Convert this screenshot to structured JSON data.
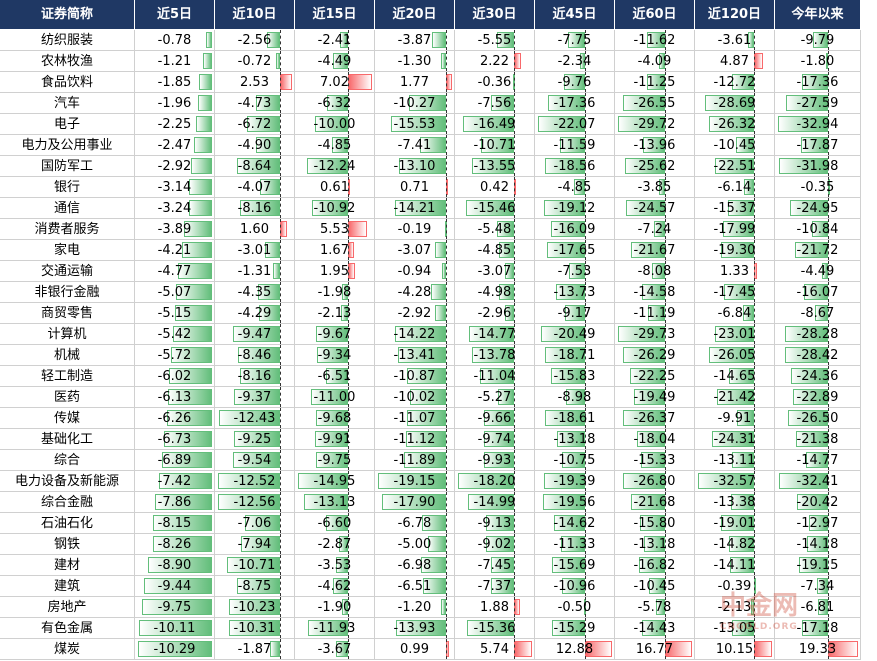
{
  "table": {
    "columns": [
      "证券简称",
      "近5日",
      "近10日",
      "近15日",
      "近20日",
      "近30日",
      "近45日",
      "近60日",
      "近120日",
      "今年以来"
    ],
    "rows": [
      {
        "name": "纺织服装",
        "values": [
          "-0.78",
          "-2.56",
          "-2.41",
          "-3.87",
          "-5.55",
          "-7.75",
          "-11.62",
          "-3.61",
          "-9.79"
        ]
      },
      {
        "name": "农林牧渔",
        "values": [
          "-1.21",
          "-0.72",
          "-4.49",
          "-1.30",
          "2.22",
          "-2.34",
          "-4.09",
          "4.87",
          "-1.80"
        ]
      },
      {
        "name": "食品饮料",
        "values": [
          "-1.85",
          "2.53",
          "7.02",
          "1.77",
          "-0.36",
          "-9.76",
          "-11.25",
          "-12.72",
          "-17.36"
        ]
      },
      {
        "name": "汽车",
        "values": [
          "-1.96",
          "-4.73",
          "-6.32",
          "-10.27",
          "-7.56",
          "-17.36",
          "-26.55",
          "-28.69",
          "-27.59"
        ]
      },
      {
        "name": "电子",
        "values": [
          "-2.25",
          "-6.72",
          "-10.00",
          "-15.53",
          "-16.49",
          "-22.07",
          "-29.72",
          "-26.32",
          "-32.94"
        ]
      },
      {
        "name": "电力及公用事业",
        "values": [
          "-2.47",
          "-4.90",
          "-4.85",
          "-7.41",
          "-10.71",
          "-11.59",
          "-13.96",
          "-10.45",
          "-17.87"
        ]
      },
      {
        "name": "国防军工",
        "values": [
          "-2.92",
          "-8.64",
          "-12.24",
          "-13.10",
          "-13.55",
          "-18.56",
          "-25.62",
          "-22.51",
          "-31.98"
        ]
      },
      {
        "name": "银行",
        "values": [
          "-3.14",
          "-4.07",
          "0.61",
          "0.71",
          "0.42",
          "-4.85",
          "-3.85",
          "-6.14",
          "-0.35"
        ]
      },
      {
        "name": "通信",
        "values": [
          "-3.24",
          "-8.16",
          "-10.92",
          "-14.21",
          "-15.46",
          "-19.12",
          "-24.57",
          "-15.37",
          "-24.95"
        ]
      },
      {
        "name": "消费者服务",
        "values": [
          "-3.89",
          "1.60",
          "5.53",
          "-0.19",
          "-5.48",
          "-16.09",
          "-7.24",
          "-17.99",
          "-10.84"
        ]
      },
      {
        "name": "家电",
        "values": [
          "-4.21",
          "-3.01",
          "1.67",
          "-3.07",
          "-4.85",
          "-17.65",
          "-21.67",
          "-19.30",
          "-21.72"
        ]
      },
      {
        "name": "交通运输",
        "values": [
          "-4.77",
          "-1.31",
          "1.95",
          "-0.94",
          "-3.07",
          "-7.53",
          "-8.08",
          "1.33",
          "-4.49"
        ]
      },
      {
        "name": "非银行金融",
        "values": [
          "-5.07",
          "-4.35",
          "-1.98",
          "-4.28",
          "-4.98",
          "-13.73",
          "-14.58",
          "-17.45",
          "-16.07"
        ]
      },
      {
        "name": "商贸零售",
        "values": [
          "-5.15",
          "-4.29",
          "-2.13",
          "-2.92",
          "-2.96",
          "-9.17",
          "-11.19",
          "-6.84",
          "-8.67"
        ]
      },
      {
        "name": "计算机",
        "values": [
          "-5.42",
          "-9.47",
          "-9.67",
          "-14.22",
          "-14.77",
          "-20.49",
          "-29.73",
          "-23.01",
          "-28.28"
        ]
      },
      {
        "name": "机械",
        "values": [
          "-5.72",
          "-8.46",
          "-9.34",
          "-13.41",
          "-13.78",
          "-18.71",
          "-26.29",
          "-26.05",
          "-28.42"
        ]
      },
      {
        "name": "轻工制造",
        "values": [
          "-6.02",
          "-8.16",
          "-6.51",
          "-10.87",
          "-11.04",
          "-15.83",
          "-22.25",
          "-14.65",
          "-24.36"
        ]
      },
      {
        "name": "医药",
        "values": [
          "-6.13",
          "-9.37",
          "-11.00",
          "-10.02",
          "-5.27",
          "-8.98",
          "-19.49",
          "-21.42",
          "-22.89"
        ]
      },
      {
        "name": "传媒",
        "values": [
          "-6.26",
          "-12.43",
          "-9.68",
          "-11.07",
          "-9.66",
          "-18.61",
          "-26.37",
          "-9.91",
          "-26.50"
        ]
      },
      {
        "name": "基础化工",
        "values": [
          "-6.73",
          "-9.25",
          "-9.91",
          "-11.12",
          "-9.74",
          "-13.18",
          "-18.04",
          "-24.31",
          "-21.38"
        ]
      },
      {
        "name": "综合",
        "values": [
          "-6.89",
          "-9.54",
          "-9.75",
          "-11.89",
          "-9.93",
          "-10.75",
          "-15.33",
          "-13.11",
          "-14.77"
        ]
      },
      {
        "name": "电力设备及新能源",
        "values": [
          "-7.42",
          "-12.52",
          "-14.95",
          "-19.15",
          "-18.20",
          "-19.39",
          "-26.80",
          "-32.57",
          "-32.41"
        ]
      },
      {
        "name": "综合金融",
        "values": [
          "-7.86",
          "-12.56",
          "-13.13",
          "-17.90",
          "-14.99",
          "-19.56",
          "-21.68",
          "-13.38",
          "-20.42"
        ]
      },
      {
        "name": "石油石化",
        "values": [
          "-8.15",
          "-7.06",
          "-6.60",
          "-6.78",
          "-9.13",
          "-14.62",
          "-15.80",
          "-19.01",
          "-12.97"
        ]
      },
      {
        "name": "钢铁",
        "values": [
          "-8.26",
          "-7.94",
          "-2.87",
          "-5.00",
          "-9.02",
          "-11.33",
          "-13.18",
          "-14.82",
          "-14.18"
        ]
      },
      {
        "name": "建材",
        "values": [
          "-8.90",
          "-10.71",
          "-3.53",
          "-6.98",
          "-7.45",
          "-15.69",
          "-16.82",
          "-14.11",
          "-19.15"
        ]
      },
      {
        "name": "建筑",
        "values": [
          "-9.44",
          "-8.75",
          "-4.62",
          "-6.51",
          "-7.37",
          "-10.96",
          "-10.45",
          "-0.39",
          "-7.34"
        ]
      },
      {
        "name": "房地产",
        "values": [
          "-9.75",
          "-10.23",
          "-1.90",
          "-1.20",
          "1.88",
          "-0.50",
          "-5.78",
          "-2.13",
          "-6.81"
        ]
      },
      {
        "name": "有色金属",
        "values": [
          "-10.11",
          "-10.31",
          "-11.93",
          "-13.93",
          "-15.36",
          "-15.29",
          "-14.43",
          "-13.05",
          "-17.18"
        ]
      },
      {
        "name": "煤炭",
        "values": [
          "-10.29",
          "-1.87",
          "-3.67",
          "0.99",
          "5.74",
          "12.88",
          "16.77",
          "10.15",
          "19.33"
        ]
      }
    ]
  },
  "watermark": {
    "name": "中金网",
    "url": "CNGOLD.ORG"
  }
}
